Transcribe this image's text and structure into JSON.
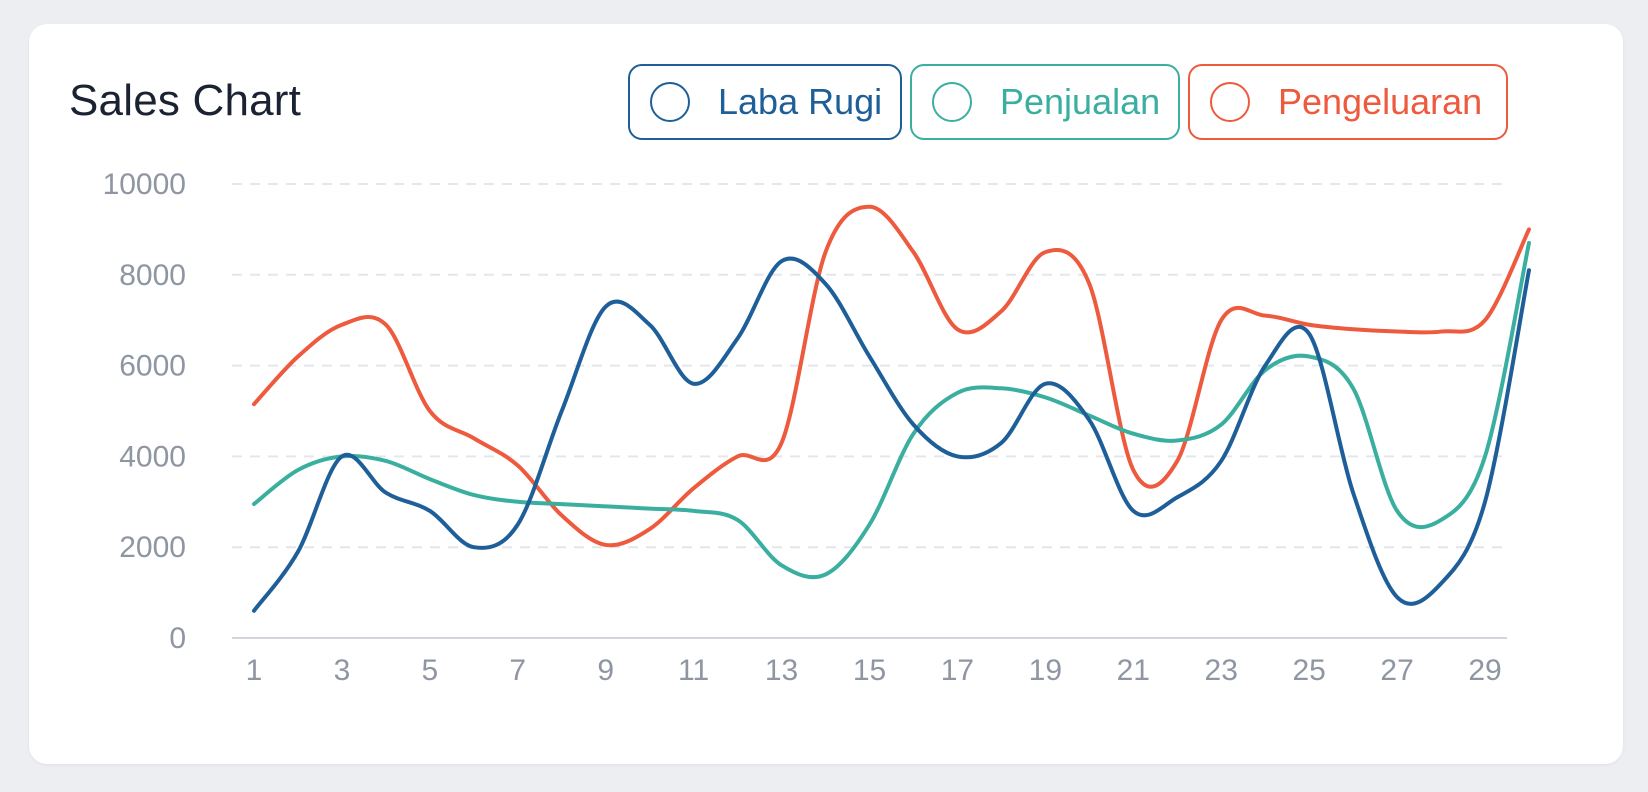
{
  "card": {
    "title": "Sales Chart"
  },
  "legend": [
    {
      "name": "Laba Rugi",
      "color": "#1e5f99"
    },
    {
      "name": "Penjualan",
      "color": "#3aafa0"
    },
    {
      "name": "Pengeluaran",
      "color": "#ee5a3d"
    }
  ],
  "chart_data": {
    "type": "line",
    "title": "Sales Chart",
    "xlabel": "",
    "ylabel": "",
    "x": [
      1,
      2,
      3,
      4,
      5,
      6,
      7,
      8,
      9,
      10,
      11,
      12,
      13,
      14,
      15,
      16,
      17,
      18,
      19,
      20,
      21,
      22,
      23,
      24,
      25,
      26,
      27,
      28,
      29,
      30
    ],
    "x_tick_labels": [
      "1",
      "3",
      "5",
      "7",
      "9",
      "11",
      "13",
      "15",
      "17",
      "19",
      "21",
      "23",
      "25",
      "27",
      "29"
    ],
    "y_ticks": [
      "0",
      "2000",
      "4000",
      "6000",
      "8000",
      "10000"
    ],
    "ylim": [
      0,
      10000
    ],
    "grid": true,
    "legend_position": "top-right",
    "series": [
      {
        "name": "Laba Rugi",
        "color": "#1e5f99",
        "values": [
          600,
          1900,
          4000,
          3200,
          2800,
          2000,
          2500,
          5000,
          7300,
          6900,
          5600,
          6600,
          8300,
          7800,
          6200,
          4700,
          4000,
          4300,
          5600,
          4800,
          2800,
          3100,
          3900,
          6000,
          6700,
          3200,
          900,
          1200,
          3000,
          8100
        ]
      },
      {
        "name": "Penjualan",
        "color": "#3aafa0",
        "values": [
          2950,
          3700,
          4000,
          3900,
          3500,
          3150,
          3000,
          2950,
          2900,
          2850,
          2800,
          2600,
          1600,
          1400,
          2500,
          4500,
          5400,
          5500,
          5300,
          4900,
          4500,
          4350,
          4700,
          5900,
          6200,
          5500,
          2800,
          2600,
          4000,
          8700
        ]
      },
      {
        "name": "Pengeluaran",
        "color": "#ee5a3d",
        "values": [
          5150,
          6200,
          6900,
          6900,
          5000,
          4400,
          3800,
          2700,
          2050,
          2400,
          3300,
          4000,
          4300,
          8500,
          9500,
          8500,
          6800,
          7200,
          8500,
          7800,
          3700,
          3900,
          7000,
          7100,
          6900,
          6800,
          6750,
          6750,
          7000,
          9000
        ]
      }
    ]
  }
}
